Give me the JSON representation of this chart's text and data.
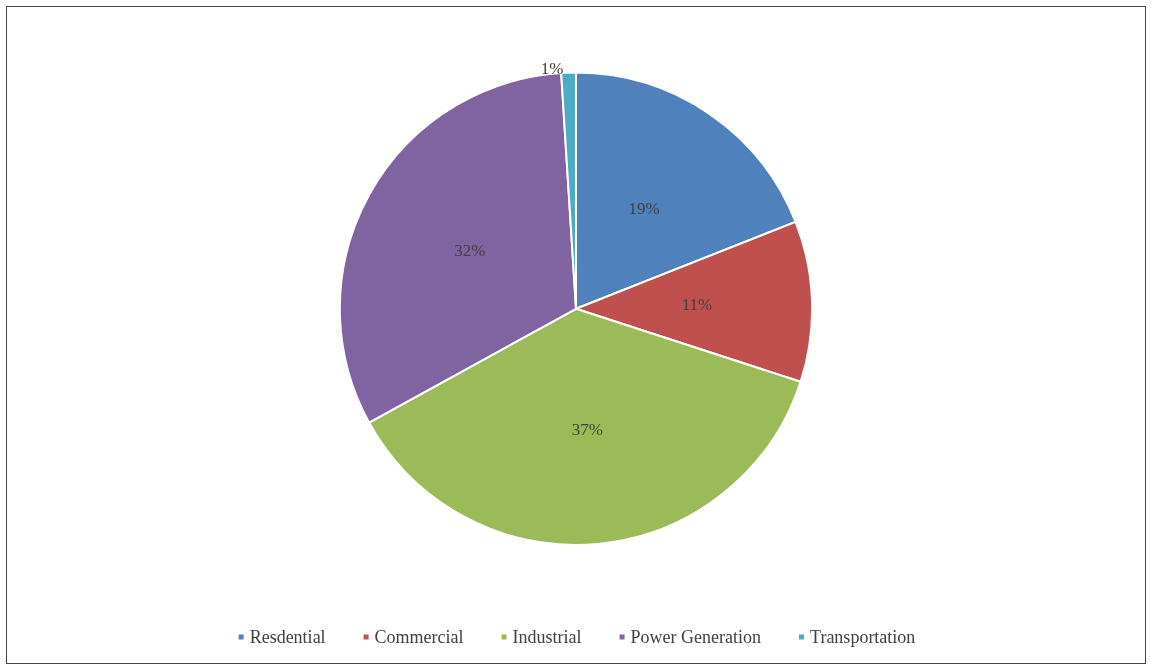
{
  "chart_data": {
    "type": "pie",
    "categories": [
      "Resdential",
      "Commercial",
      "Industrial",
      "Power Generation",
      "Transportation"
    ],
    "values": [
      19,
      11,
      37,
      32,
      1
    ],
    "value_labels": [
      "19%",
      "11%",
      "37%",
      "32%",
      "1%"
    ],
    "colors": [
      "#4f81bd",
      "#c0504d",
      "#9bbb59",
      "#8064a2",
      "#4bacc6"
    ],
    "legend": "bottom"
  }
}
